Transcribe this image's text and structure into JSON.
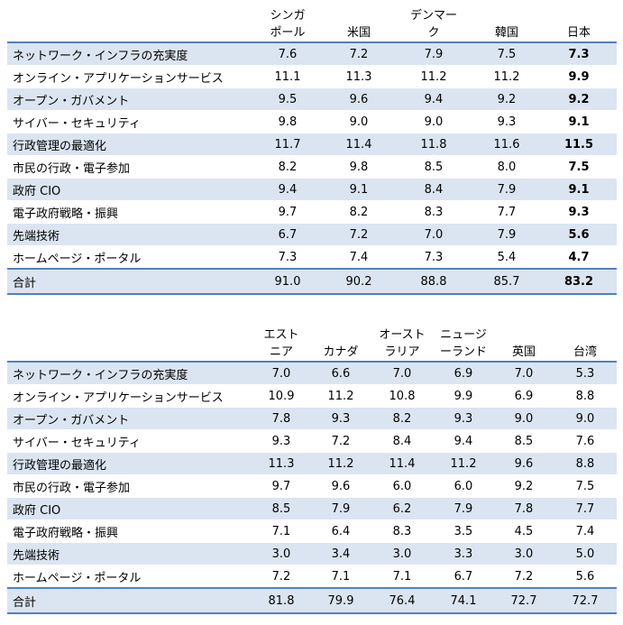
{
  "table1": {
    "headers": [
      "シンガ\nポール",
      "米国",
      "デンマー\nク",
      "韓国",
      "日本"
    ],
    "rows": [
      {
        "label": "ネットワーク・インフラの充実度",
        "values": [
          "7.6",
          "7.2",
          "7.9",
          "7.5",
          "7.3"
        ]
      },
      {
        "label": "オンライン・アプリケーションサービス",
        "values": [
          "11.1",
          "11.3",
          "11.2",
          "11.2",
          "9.9"
        ]
      },
      {
        "label": "オープン・ガバメント",
        "values": [
          "9.5",
          "9.6",
          "9.4",
          "9.2",
          "9.2"
        ]
      },
      {
        "label": "サイバー・セキュリティ",
        "values": [
          "9.8",
          "9.0",
          "9.0",
          "9.3",
          "9.1"
        ]
      },
      {
        "label": "行政管理の最適化",
        "values": [
          "11.7",
          "11.4",
          "11.8",
          "11.6",
          "11.5"
        ]
      },
      {
        "label": "市民の行政・電子参加",
        "values": [
          "8.2",
          "9.8",
          "8.5",
          "8.0",
          "7.5"
        ]
      },
      {
        "label": "政府 CIO",
        "values": [
          "9.4",
          "9.1",
          "8.4",
          "7.9",
          "9.1"
        ]
      },
      {
        "label": "電子政府戦略・振興",
        "values": [
          "9.7",
          "8.2",
          "8.3",
          "7.7",
          "9.3"
        ]
      },
      {
        "label": "先端技術",
        "values": [
          "6.7",
          "7.2",
          "7.0",
          "7.9",
          "5.6"
        ]
      },
      {
        "label": "ホームページ・ポータル",
        "values": [
          "7.3",
          "7.4",
          "7.3",
          "5.4",
          "4.7"
        ]
      }
    ],
    "total": {
      "label": "合計",
      "values": [
        "91.0",
        "90.2",
        "88.8",
        "85.7",
        "83.2"
      ]
    }
  },
  "table2": {
    "headers": [
      "エスト\nニア",
      "カナダ",
      "オースト\nラリア",
      "ニュージ\nーランド",
      "英国",
      "台湾"
    ],
    "rows": [
      {
        "label": "ネットワーク・インフラの充実度",
        "values": [
          "7.0",
          "6.6",
          "7.0",
          "6.9",
          "7.0",
          "5.3"
        ]
      },
      {
        "label": "オンライン・アプリケーションサービス",
        "values": [
          "10.9",
          "11.2",
          "10.8",
          "9.9",
          "6.9",
          "8.8"
        ]
      },
      {
        "label": "オープン・ガバメント",
        "values": [
          "7.8",
          "9.3",
          "8.2",
          "9.3",
          "9.0",
          "9.0"
        ]
      },
      {
        "label": "サイバー・セキュリティ",
        "values": [
          "9.3",
          "7.2",
          "8.4",
          "9.4",
          "8.5",
          "7.6"
        ]
      },
      {
        "label": "行政管理の最適化",
        "values": [
          "11.3",
          "11.2",
          "11.4",
          "11.2",
          "9.6",
          "8.8"
        ]
      },
      {
        "label": "市民の行政・電子参加",
        "values": [
          "9.7",
          "9.6",
          "6.0",
          "6.0",
          "9.2",
          "7.5"
        ]
      },
      {
        "label": "政府 CIO",
        "values": [
          "8.5",
          "7.9",
          "6.2",
          "7.9",
          "7.8",
          "7.7"
        ]
      },
      {
        "label": "電子政府戦略・振興",
        "values": [
          "7.1",
          "6.4",
          "8.3",
          "3.5",
          "4.5",
          "7.4"
        ]
      },
      {
        "label": "先端技術",
        "values": [
          "3.0",
          "3.4",
          "3.0",
          "3.3",
          "3.0",
          "5.0"
        ]
      },
      {
        "label": "ホームページ・ポータル",
        "values": [
          "7.2",
          "7.1",
          "7.1",
          "6.7",
          "7.2",
          "5.6"
        ]
      }
    ],
    "total": {
      "label": "合計",
      "values": [
        "81.8",
        "79.9",
        "76.4",
        "74.1",
        "72.7",
        "72.7"
      ]
    }
  },
  "colors": {
    "band": "#dbe5f1",
    "rule": "#4f81bd"
  }
}
